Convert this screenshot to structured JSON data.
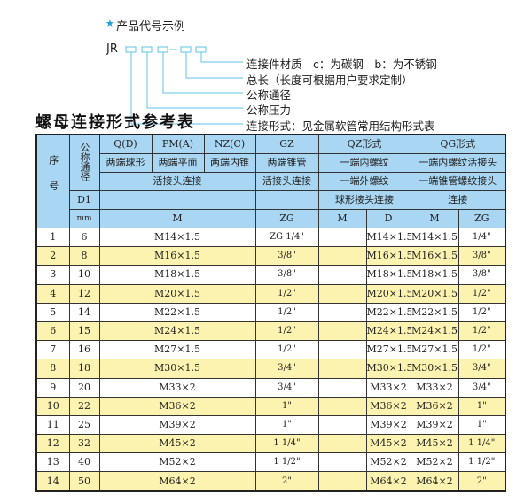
{
  "diagram": {
    "heading": "产品代号示例",
    "prefix": "JR",
    "labels": [
      "连接件材质　c：为碳钢　b：为不锈钢",
      "总长（长度可根据用户要求定制）",
      "公称通径",
      "公称压力",
      "连接形式：见金属软管常用结构形式表"
    ],
    "accent": "#1a9fd8"
  },
  "table_title": "螺母连接形式参考表",
  "header": {
    "seq": "序号",
    "dn": "公称通径",
    "d1": "D1",
    "mm": "mm",
    "q": "Q(D)",
    "pm": "PM(A)",
    "nz": "NZ(C)",
    "gz": "GZ",
    "qz": "QZ形式",
    "qg": "QG形式",
    "q_desc": "两端球形",
    "pm_desc": "两端平面",
    "nz_desc": "两端内锥",
    "gz_desc": "两端锥管",
    "qz_desc1": "一端内螺纹",
    "qg_desc1": "一端内螺纹活接头",
    "joint": "活接头连接",
    "gz_joint": "活接头连接",
    "qz_desc2": "一端外螺纹",
    "qg_desc2": "一端锥管螺纹接头",
    "qz_desc3": "球形接头连接",
    "qg_desc3": "连接",
    "m": "M",
    "zg": "ZG",
    "qz_m": "M",
    "qz_d": "D",
    "qg_m": "M",
    "qg_zg": "ZG"
  },
  "colors": {
    "header_bg": "#a9d6f2",
    "stripe": "#fdf3b0"
  },
  "rows": [
    {
      "no": "1",
      "dn": "6",
      "m": "M14×1.5",
      "zg": "ZG 1/4\"",
      "qz_m": "",
      "qz_d": "M14×1.5",
      "qg_m": "M14×1.5",
      "qg_zg": "1/4\""
    },
    {
      "no": "2",
      "dn": "8",
      "m": "M16×1.5",
      "zg": "3/8\"",
      "qz_m": "",
      "qz_d": "M16×1.5",
      "qg_m": "M16×1.5",
      "qg_zg": "3/8\""
    },
    {
      "no": "3",
      "dn": "10",
      "m": "M18×1.5",
      "zg": "3/8\"",
      "qz_m": "",
      "qz_d": "M18×1.5",
      "qg_m": "M18×1.5",
      "qg_zg": "3/8\""
    },
    {
      "no": "4",
      "dn": "12",
      "m": "M20×1.5",
      "zg": "1/2\"",
      "qz_m": "",
      "qz_d": "M20×1.5",
      "qg_m": "M20×1.5",
      "qg_zg": "1/2\""
    },
    {
      "no": "5",
      "dn": "14",
      "m": "M22×1.5",
      "zg": "1/2\"",
      "qz_m": "",
      "qz_d": "M22×1.5",
      "qg_m": "M22×1.5",
      "qg_zg": "1/2\""
    },
    {
      "no": "6",
      "dn": "15",
      "m": "M24×1.5",
      "zg": "1/2\"",
      "qz_m": "",
      "qz_d": "M24×1.5",
      "qg_m": "M24×1.5",
      "qg_zg": "1/2\""
    },
    {
      "no": "7",
      "dn": "16",
      "m": "M27×1.5",
      "zg": "1/2\"",
      "qz_m": "",
      "qz_d": "M27×1.5",
      "qg_m": "M27×1.5",
      "qg_zg": "1/2\""
    },
    {
      "no": "8",
      "dn": "18",
      "m": "M30×1.5",
      "zg": "3/4\"",
      "qz_m": "",
      "qz_d": "M30×1.5",
      "qg_m": "M30×1.5",
      "qg_zg": "3/4\""
    },
    {
      "no": "9",
      "dn": "20",
      "m": "M33×2",
      "zg": "3/4\"",
      "qz_m": "",
      "qz_d": "M33×2",
      "qg_m": "M33×2",
      "qg_zg": "3/4\""
    },
    {
      "no": "10",
      "dn": "22",
      "m": "M36×2",
      "zg": "1\"",
      "qz_m": "",
      "qz_d": "M36×2",
      "qg_m": "M36×2",
      "qg_zg": "1\""
    },
    {
      "no": "11",
      "dn": "25",
      "m": "M39×2",
      "zg": "1\"",
      "qz_m": "",
      "qz_d": "M39×2",
      "qg_m": "M39×2",
      "qg_zg": "1\""
    },
    {
      "no": "12",
      "dn": "32",
      "m": "M45×2",
      "zg": "1 1/4\"",
      "qz_m": "",
      "qz_d": "M45×2",
      "qg_m": "M45×2",
      "qg_zg": "1 1/4\""
    },
    {
      "no": "13",
      "dn": "40",
      "m": "M52×2",
      "zg": "1 1/2\"",
      "qz_m": "",
      "qz_d": "M52×2",
      "qg_m": "M52×2",
      "qg_zg": "1 1/2\""
    },
    {
      "no": "14",
      "dn": "50",
      "m": "M64×2",
      "zg": "2\"",
      "qz_m": "",
      "qz_d": "M64×2",
      "qg_m": "M64×2",
      "qg_zg": "2\""
    }
  ]
}
